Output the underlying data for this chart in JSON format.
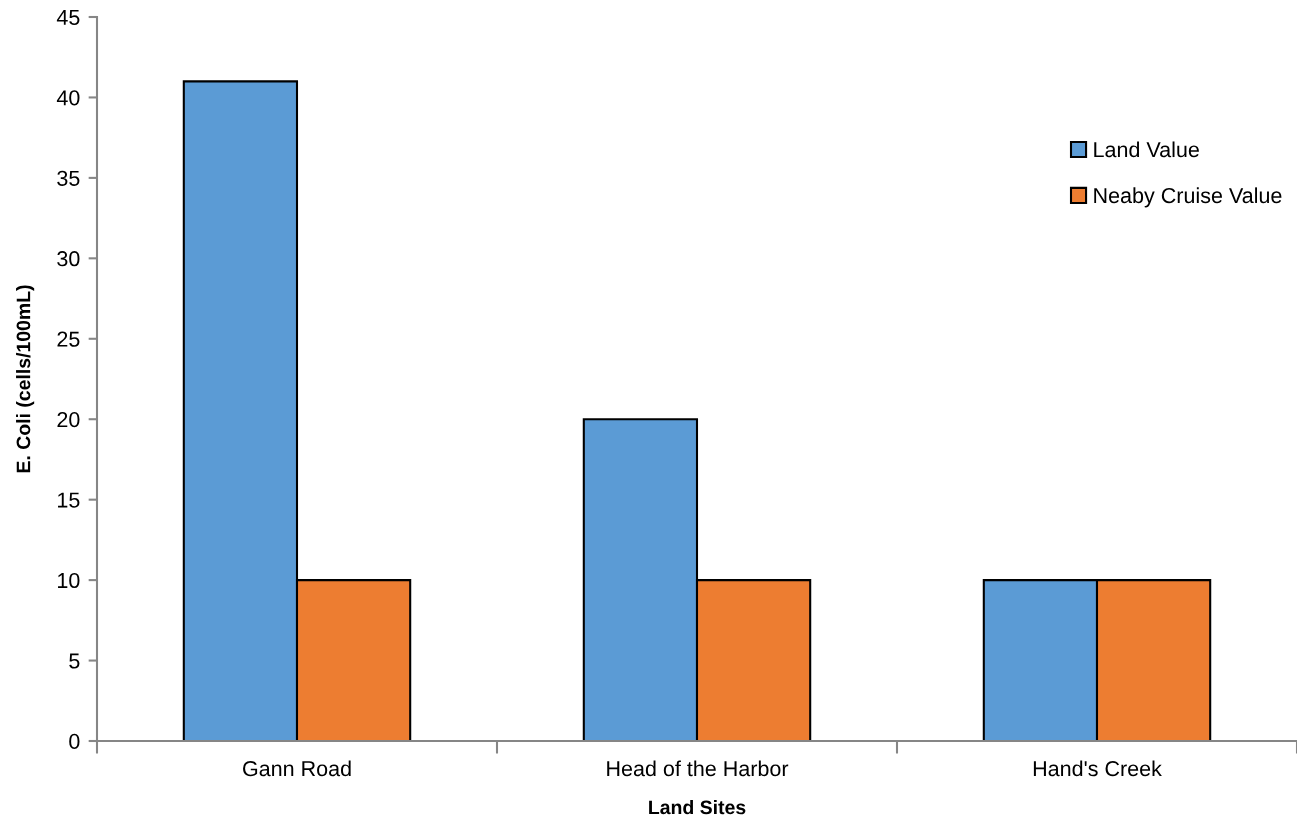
{
  "chart_data": {
    "type": "bar",
    "xlabel": "Land Sites",
    "ylabel": "E. Coli (cells/100mL)",
    "categories": [
      "Gann Road",
      "Head of the Harbor",
      "Hand's Creek"
    ],
    "series": [
      {
        "name": "Land Value",
        "color": "#5b9bd5",
        "values": [
          41,
          20,
          10
        ]
      },
      {
        "name": "Neaby Cruise Value",
        "color": "#ed7d31",
        "values": [
          10,
          10,
          10
        ]
      }
    ],
    "ylim": [
      0,
      45
    ],
    "yticks": [
      0,
      5,
      10,
      15,
      20,
      25,
      30,
      35,
      40,
      45
    ],
    "grid": false,
    "legend": "top right"
  }
}
